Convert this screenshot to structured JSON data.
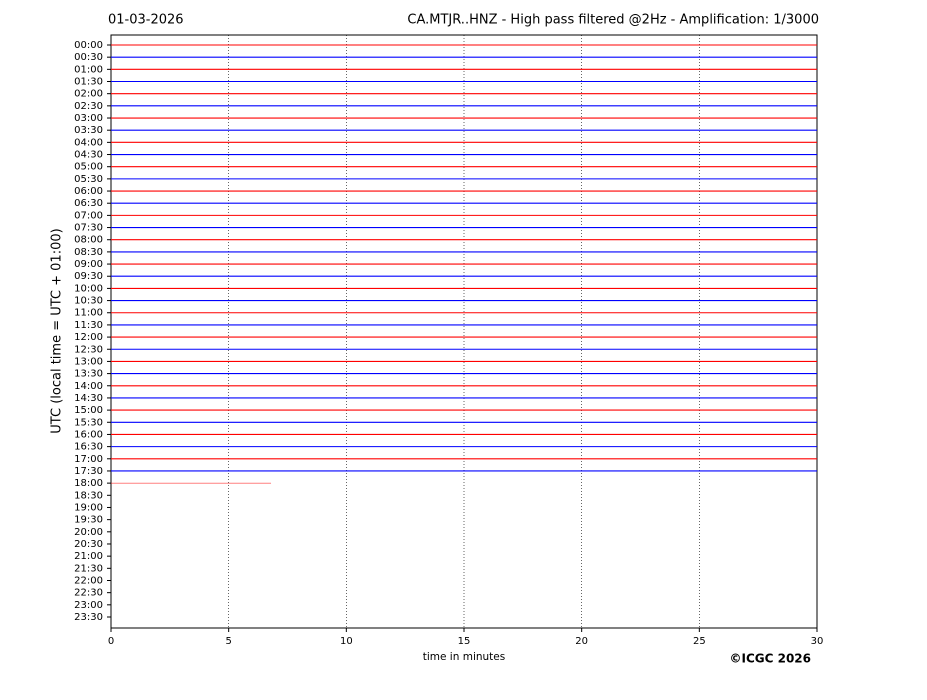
{
  "chart_data": {
    "type": "helicorder",
    "date": "01-03-2026",
    "title": "CA.MTJR..HNZ - High pass filtered @2Hz - Amplification: 1/3000",
    "xlabel": "time in minutes",
    "ylabel": "UTC (local time = UTC + 01:00)",
    "credit": "©ICGC 2026",
    "categories": [
      "00:00",
      "00:30",
      "01:00",
      "01:30",
      "02:00",
      "02:30",
      "03:00",
      "03:30",
      "04:00",
      "04:30",
      "05:00",
      "05:30",
      "06:00",
      "06:30",
      "07:00",
      "07:30",
      "08:00",
      "08:30",
      "09:00",
      "09:30",
      "10:00",
      "10:30",
      "11:00",
      "11:30",
      "12:00",
      "12:30",
      "13:00",
      "13:30",
      "14:00",
      "14:30",
      "15:00",
      "15:30",
      "16:00",
      "16:30",
      "17:00",
      "17:30",
      "18:00",
      "18:30",
      "19:00",
      "19:30",
      "20:00",
      "20:30",
      "21:00",
      "21:30",
      "22:00",
      "22:30",
      "23:00",
      "23:30"
    ],
    "trace_end": [
      30,
      30,
      30,
      30,
      30,
      30,
      30,
      30,
      30,
      30,
      30,
      30,
      30,
      30,
      30,
      30,
      30,
      30,
      30,
      30,
      30,
      30,
      30,
      30,
      30,
      30,
      30,
      30,
      30,
      30,
      30,
      30,
      30,
      30,
      30,
      30,
      6.8,
      null,
      null,
      null,
      null,
      null,
      null,
      null,
      null,
      null,
      null,
      null
    ],
    "trace_colors": [
      "#ff0000",
      "#0000ff"
    ],
    "xlim": [
      0,
      30
    ],
    "xticks": [
      0,
      5,
      10,
      15,
      20,
      25,
      30
    ],
    "grid": true
  }
}
